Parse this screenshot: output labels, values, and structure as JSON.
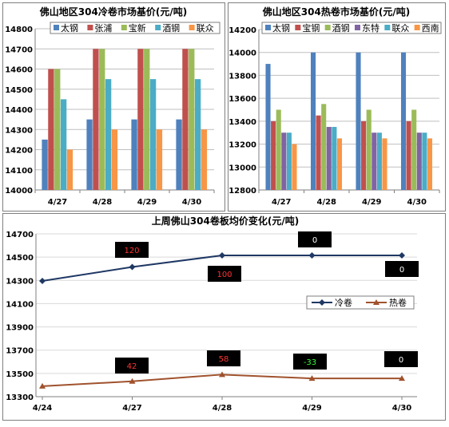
{
  "chart_data": [
    {
      "type": "bar",
      "title": "佛山地区304冷卷市场基价(元/吨)",
      "categories": [
        "4/27",
        "4/28",
        "4/29",
        "4/30"
      ],
      "ylim": [
        14000,
        14800
      ],
      "yticks": [
        "14000",
        "14100",
        "14200",
        "14300",
        "14400",
        "14500",
        "14600",
        "14700",
        "14800"
      ],
      "legend_position": "top",
      "series": [
        {
          "name": "太钢",
          "color": "#4f81bd",
          "values": [
            14250,
            14350,
            14350,
            14350
          ]
        },
        {
          "name": "张浦",
          "color": "#c0504d",
          "values": [
            14600,
            14700,
            14700,
            14700
          ]
        },
        {
          "name": "宝新",
          "color": "#9bbb59",
          "values": [
            14600,
            14700,
            14700,
            14700
          ]
        },
        {
          "name": "酒钢",
          "color": "#4bacc6",
          "values": [
            14450,
            14550,
            14550,
            14550
          ]
        },
        {
          "name": "联众",
          "color": "#f79646",
          "values": [
            14200,
            14300,
            14300,
            14300
          ]
        }
      ]
    },
    {
      "type": "bar",
      "title": "佛山地区304热卷市场基价(元/吨)",
      "categories": [
        "4/27",
        "4/28",
        "4/29",
        "4/30"
      ],
      "ylim": [
        12800,
        14200
      ],
      "yticks": [
        "12800",
        "13000",
        "13200",
        "13400",
        "13600",
        "13800",
        "14000",
        "14200"
      ],
      "legend_position": "top",
      "series": [
        {
          "name": "太钢",
          "color": "#4f81bd",
          "values": [
            13900,
            14000,
            14000,
            14000
          ]
        },
        {
          "name": "宝钢",
          "color": "#c0504d",
          "values": [
            13400,
            13450,
            13400,
            13400
          ]
        },
        {
          "name": "酒钢",
          "color": "#9bbb59",
          "values": [
            13500,
            13550,
            13500,
            13500
          ]
        },
        {
          "name": "东特",
          "color": "#8064a2",
          "values": [
            13300,
            13350,
            13300,
            13300
          ]
        },
        {
          "name": "联众",
          "color": "#4bacc6",
          "values": [
            13300,
            13350,
            13300,
            13300
          ]
        },
        {
          "name": "西南",
          "color": "#f79646",
          "values": [
            13200,
            13250,
            13250,
            13250
          ]
        }
      ]
    },
    {
      "type": "line",
      "title": "上周佛山304卷板均价变化(元/吨)",
      "categories": [
        "4/24",
        "4/27",
        "4/28",
        "4/29",
        "4/30"
      ],
      "ylim": [
        13300,
        14700
      ],
      "yticks": [
        "13300",
        "13500",
        "13700",
        "13900",
        "14100",
        "14300",
        "14500",
        "14700"
      ],
      "legend_position": "center-right",
      "series": [
        {
          "name": "冷卷",
          "color": "#1f3864",
          "marker": "diamond",
          "values": [
            14295,
            14415,
            14515,
            14515,
            14515
          ]
        },
        {
          "name": "热卷",
          "color": "#a0522d",
          "marker": "triangle",
          "values": [
            13390,
            13432,
            13490,
            13457,
            13457
          ]
        }
      ],
      "annotations": {
        "cold": [
          "120",
          "100",
          "0",
          "0"
        ],
        "hot": [
          "42",
          "58",
          "-33",
          "0"
        ]
      }
    }
  ]
}
